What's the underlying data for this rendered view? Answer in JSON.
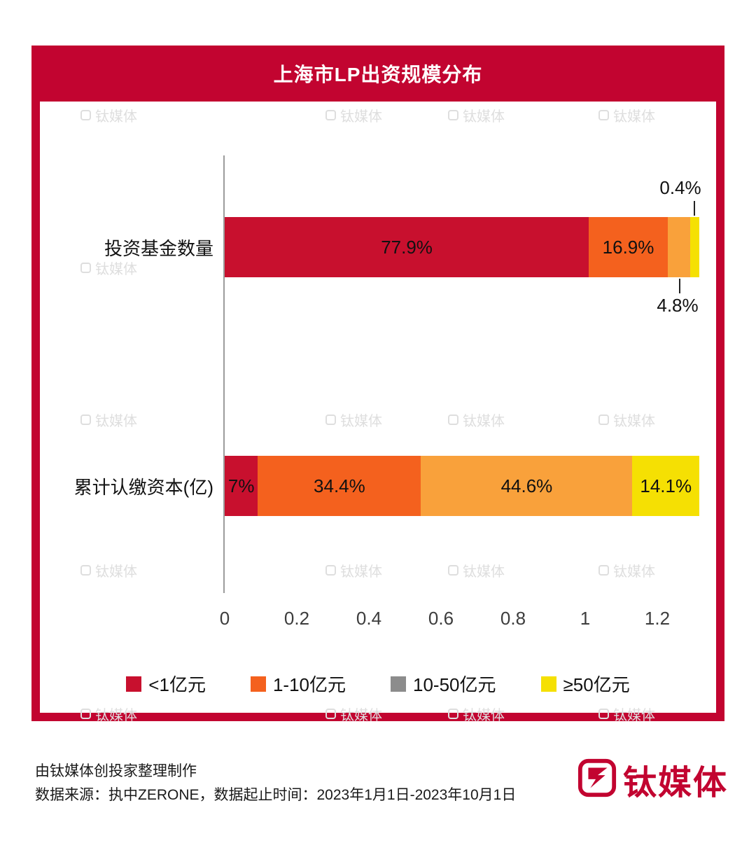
{
  "header": {
    "title": "上海市LP出资规模分布"
  },
  "chart_data": {
    "type": "bar",
    "orientation": "horizontal",
    "stacked": true,
    "title": "上海市LP出资规模分布",
    "unit": "%",
    "categories": [
      "投资基金数量",
      "累计认缴资本(亿)"
    ],
    "series": [
      {
        "name": "<1亿元",
        "color": "#C8102E",
        "values": [
          77.9,
          7
        ]
      },
      {
        "name": "1-10亿元",
        "color": "#F4611E",
        "values": [
          16.9,
          34.4
        ]
      },
      {
        "name": "10-50亿元",
        "color": "#F9A13B",
        "values": [
          4.8,
          44.6
        ]
      },
      {
        "name": "≥50亿元",
        "color": "#F5E003",
        "values": [
          0.4,
          14.1
        ]
      }
    ],
    "segment_labels": [
      [
        "77.9%",
        "16.9%",
        "",
        ""
      ],
      [
        "7%",
        "34.4%",
        "44.6%",
        "14.1%"
      ]
    ],
    "callouts": [
      {
        "label": "0.4%",
        "series": "≥50亿元",
        "position": "above"
      },
      {
        "label": "4.8%",
        "series": "10-50亿元",
        "position": "below"
      }
    ],
    "x_axis": {
      "ticks": [
        0,
        0.2,
        0.4,
        0.6,
        0.8,
        1,
        1.2
      ],
      "tick_labels": [
        "0",
        "0.2",
        "0.4",
        "0.6",
        "0.8",
        "1",
        "1.2"
      ],
      "xlim": [
        0,
        1.2
      ]
    },
    "legend": [
      {
        "label": "<1亿元",
        "swatch_color": "#C8102E"
      },
      {
        "label": "1-10亿元",
        "swatch_color": "#F4611E"
      },
      {
        "label": "10-50亿元",
        "swatch_color": "#8C8C8C"
      },
      {
        "label": "≥50亿元",
        "swatch_color": "#F5E003"
      }
    ],
    "legend_position": "bottom",
    "grid": false
  },
  "footer": {
    "line1": "由钛媒体创投家整理制作",
    "line2": "数据来源：执中ZERONE，数据起止时间：2023年1月1日-2023年10月1日",
    "brand": "钛媒体"
  },
  "watermark": {
    "text": "钛媒体"
  },
  "colors": {
    "frame_red": "#C20430",
    "bar_dark_red": "#C8102E",
    "bar_orange": "#F4611E",
    "bar_amber": "#F9A13B",
    "bar_yellow": "#F5E003",
    "legend_gray": "#8C8C8C"
  }
}
